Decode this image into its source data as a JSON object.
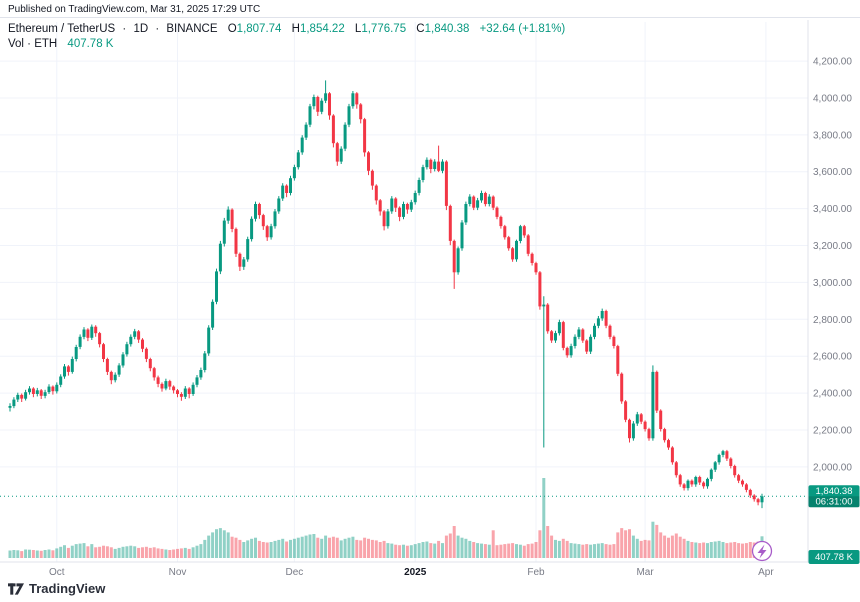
{
  "published": "Published on TradingView.com, Mar 31, 2025 17:29 UTC",
  "header": {
    "symbol": "Ethereum / TetherUS",
    "sep": "·",
    "interval": "1D",
    "exchange": "BINANCE",
    "o_label": "O",
    "o_value": "1,807.74",
    "h_label": "H",
    "h_value": "1,854.22",
    "l_label": "L",
    "l_value": "1,776.75",
    "c_label": "C",
    "c_value": "1,840.38",
    "change": "+32.64 (+1.81%)",
    "vol_label": "Vol · ETH",
    "vol_value": "407.78 K"
  },
  "watermark": {
    "brand": "TradingView"
  },
  "colors": {
    "up": "#089981",
    "down": "#F23645",
    "volume_up": "rgba(8,153,129,0.45)",
    "volume_down": "rgba(242,54,69,0.45)",
    "grid": "#F0F3FA",
    "axis_border": "#E0E3EB",
    "axis_text": "#787B86",
    "text": "#131722",
    "label_bg": "#089981",
    "bolt": "#A85CC9"
  },
  "chart_data": {
    "type": "candlestick",
    "title": "Ethereum / TetherUS · 1D · BINANCE",
    "interval": "1D",
    "grid": true,
    "legend_position": "top-left",
    "ylim": [
      1750,
      4260
    ],
    "columns": [
      "open",
      "high",
      "low",
      "close",
      "volume_k"
    ],
    "last": {
      "price": 1840.38,
      "price_label": "1,840.38",
      "countdown": "06:31:00",
      "volume_label": "407.78 K"
    },
    "y_axis": {
      "side": "right",
      "ticks": [
        {
          "value": 4200,
          "label": "4,200.00"
        },
        {
          "value": 4000,
          "label": "4,000.00"
        },
        {
          "value": 3800,
          "label": "3,800.00"
        },
        {
          "value": 3600,
          "label": "3,600.00"
        },
        {
          "value": 3400,
          "label": "3,400.00"
        },
        {
          "value": 3200,
          "label": "3,200.00"
        },
        {
          "value": 3000,
          "label": "3,000.00"
        },
        {
          "value": 2800,
          "label": "2,800.00"
        },
        {
          "value": 2600,
          "label": "2,600.00"
        },
        {
          "value": 2400,
          "label": "2,400.00"
        },
        {
          "value": 2200,
          "label": "2,200.00"
        },
        {
          "value": 2000,
          "label": "2,000.00"
        }
      ]
    },
    "x_axis": {
      "labels": [
        {
          "index": 12,
          "label": "Oct",
          "bold": false
        },
        {
          "index": 43,
          "label": "Nov",
          "bold": false
        },
        {
          "index": 73,
          "label": "Dec",
          "bold": false
        },
        {
          "index": 104,
          "label": "2025",
          "bold": true
        },
        {
          "index": 135,
          "label": "Feb",
          "bold": false
        },
        {
          "index": 163,
          "label": "Mar",
          "bold": false
        },
        {
          "index": 194,
          "label": "Apr",
          "bold": false
        }
      ]
    },
    "candles": [
      [
        2320,
        2345,
        2300,
        2330,
        140
      ],
      [
        2330,
        2378,
        2318,
        2365,
        150
      ],
      [
        2365,
        2402,
        2352,
        2390,
        145
      ],
      [
        2390,
        2398,
        2352,
        2370,
        130
      ],
      [
        2370,
        2418,
        2360,
        2405,
        160
      ],
      [
        2405,
        2438,
        2392,
        2425,
        155
      ],
      [
        2425,
        2432,
        2378,
        2395,
        150
      ],
      [
        2395,
        2428,
        2382,
        2415,
        140
      ],
      [
        2415,
        2422,
        2368,
        2385,
        135
      ],
      [
        2385,
        2418,
        2372,
        2405,
        150
      ],
      [
        2405,
        2448,
        2395,
        2435,
        160
      ],
      [
        2435,
        2442,
        2392,
        2410,
        145
      ],
      [
        2410,
        2458,
        2398,
        2445,
        180
      ],
      [
        2445,
        2502,
        2432,
        2490,
        210
      ],
      [
        2490,
        2558,
        2478,
        2545,
        240
      ],
      [
        2545,
        2552,
        2495,
        2515,
        190
      ],
      [
        2515,
        2598,
        2505,
        2585,
        230
      ],
      [
        2585,
        2662,
        2572,
        2650,
        260
      ],
      [
        2650,
        2718,
        2638,
        2705,
        270
      ],
      [
        2705,
        2758,
        2692,
        2745,
        280
      ],
      [
        2745,
        2752,
        2682,
        2700,
        220
      ],
      [
        2700,
        2772,
        2688,
        2760,
        260
      ],
      [
        2760,
        2768,
        2705,
        2725,
        200
      ],
      [
        2725,
        2732,
        2648,
        2665,
        210
      ],
      [
        2665,
        2672,
        2568,
        2585,
        230
      ],
      [
        2585,
        2592,
        2498,
        2515,
        220
      ],
      [
        2515,
        2522,
        2448,
        2470,
        200
      ],
      [
        2470,
        2512,
        2458,
        2500,
        170
      ],
      [
        2500,
        2562,
        2488,
        2550,
        190
      ],
      [
        2550,
        2622,
        2538,
        2610,
        210
      ],
      [
        2610,
        2678,
        2598,
        2665,
        220
      ],
      [
        2665,
        2718,
        2652,
        2705,
        230
      ],
      [
        2705,
        2748,
        2692,
        2735,
        220
      ],
      [
        2735,
        2742,
        2672,
        2690,
        190
      ],
      [
        2690,
        2698,
        2622,
        2640,
        200
      ],
      [
        2640,
        2648,
        2568,
        2585,
        210
      ],
      [
        2585,
        2592,
        2518,
        2535,
        190
      ],
      [
        2535,
        2542,
        2468,
        2485,
        200
      ],
      [
        2485,
        2495,
        2432,
        2450,
        180
      ],
      [
        2450,
        2458,
        2408,
        2425,
        170
      ],
      [
        2425,
        2478,
        2415,
        2465,
        160
      ],
      [
        2465,
        2472,
        2418,
        2435,
        150
      ],
      [
        2435,
        2442,
        2398,
        2415,
        160
      ],
      [
        2415,
        2422,
        2378,
        2395,
        170
      ],
      [
        2395,
        2405,
        2358,
        2380,
        180
      ],
      [
        2380,
        2438,
        2368,
        2425,
        190
      ],
      [
        2425,
        2432,
        2372,
        2395,
        170
      ],
      [
        2395,
        2458,
        2385,
        2445,
        200
      ],
      [
        2445,
        2498,
        2432,
        2485,
        230
      ],
      [
        2485,
        2538,
        2472,
        2525,
        260
      ],
      [
        2525,
        2628,
        2512,
        2615,
        340
      ],
      [
        2615,
        2768,
        2602,
        2755,
        420
      ],
      [
        2755,
        2908,
        2742,
        2895,
        480
      ],
      [
        2895,
        3075,
        2882,
        3060,
        540
      ],
      [
        3060,
        3225,
        3045,
        3210,
        560
      ],
      [
        3210,
        3350,
        3195,
        3335,
        520
      ],
      [
        3335,
        3412,
        3318,
        3395,
        480
      ],
      [
        3395,
        3402,
        3272,
        3290,
        400
      ],
      [
        3290,
        3298,
        3138,
        3155,
        380
      ],
      [
        3155,
        3162,
        3062,
        3085,
        340
      ],
      [
        3085,
        3138,
        3068,
        3125,
        300
      ],
      [
        3125,
        3248,
        3112,
        3235,
        330
      ],
      [
        3235,
        3358,
        3222,
        3345,
        360
      ],
      [
        3345,
        3438,
        3330,
        3425,
        380
      ],
      [
        3425,
        3432,
        3345,
        3365,
        320
      ],
      [
        3365,
        3372,
        3285,
        3305,
        300
      ],
      [
        3305,
        3312,
        3225,
        3245,
        290
      ],
      [
        3245,
        3318,
        3232,
        3305,
        300
      ],
      [
        3305,
        3398,
        3292,
        3385,
        320
      ],
      [
        3385,
        3468,
        3372,
        3455,
        340
      ],
      [
        3455,
        3538,
        3442,
        3525,
        360
      ],
      [
        3525,
        3532,
        3462,
        3485,
        310
      ],
      [
        3485,
        3578,
        3472,
        3565,
        340
      ],
      [
        3565,
        3638,
        3552,
        3625,
        360
      ],
      [
        3625,
        3718,
        3612,
        3705,
        380
      ],
      [
        3705,
        3798,
        3692,
        3785,
        400
      ],
      [
        3785,
        3868,
        3772,
        3855,
        420
      ],
      [
        3855,
        3968,
        3842,
        3955,
        440
      ],
      [
        3955,
        4018,
        3938,
        4005,
        450
      ],
      [
        4005,
        4012,
        3902,
        3925,
        380
      ],
      [
        3925,
        3998,
        3912,
        3985,
        360
      ],
      [
        3985,
        4095,
        3972,
        4025,
        420
      ],
      [
        4025,
        4032,
        3882,
        3905,
        380
      ],
      [
        3905,
        3912,
        3732,
        3755,
        400
      ],
      [
        3755,
        3762,
        3632,
        3655,
        380
      ],
      [
        3655,
        3738,
        3642,
        3725,
        330
      ],
      [
        3725,
        3868,
        3712,
        3855,
        360
      ],
      [
        3855,
        3968,
        3842,
        3955,
        380
      ],
      [
        3955,
        4038,
        3942,
        4025,
        400
      ],
      [
        4025,
        4032,
        3942,
        3965,
        340
      ],
      [
        3965,
        3972,
        3862,
        3885,
        330
      ],
      [
        3885,
        3892,
        3682,
        3705,
        380
      ],
      [
        3705,
        3712,
        3582,
        3605,
        360
      ],
      [
        3605,
        3612,
        3502,
        3525,
        340
      ],
      [
        3525,
        3532,
        3422,
        3445,
        330
      ],
      [
        3445,
        3452,
        3362,
        3385,
        300
      ],
      [
        3385,
        3392,
        3282,
        3305,
        320
      ],
      [
        3305,
        3398,
        3292,
        3385,
        280
      ],
      [
        3385,
        3468,
        3372,
        3455,
        270
      ],
      [
        3455,
        3462,
        3382,
        3405,
        250
      ],
      [
        3405,
        3412,
        3332,
        3355,
        240
      ],
      [
        3355,
        3438,
        3342,
        3425,
        250
      ],
      [
        3425,
        3432,
        3372,
        3395,
        230
      ],
      [
        3395,
        3448,
        3382,
        3435,
        240
      ],
      [
        3435,
        3498,
        3422,
        3485,
        260
      ],
      [
        3485,
        3568,
        3472,
        3555,
        280
      ],
      [
        3555,
        3638,
        3542,
        3625,
        300
      ],
      [
        3625,
        3678,
        3612,
        3665,
        310
      ],
      [
        3665,
        3672,
        3592,
        3615,
        280
      ],
      [
        3615,
        3668,
        3602,
        3655,
        270
      ],
      [
        3655,
        3742,
        3598,
        3605,
        320
      ],
      [
        3605,
        3668,
        3592,
        3655,
        280
      ],
      [
        3655,
        3662,
        3392,
        3415,
        420
      ],
      [
        3415,
        3422,
        3202,
        3225,
        460
      ],
      [
        3225,
        3232,
        2965,
        3055,
        600
      ],
      [
        3055,
        3195,
        3042,
        3185,
        420
      ],
      [
        3185,
        3338,
        3172,
        3325,
        380
      ],
      [
        3325,
        3438,
        3312,
        3425,
        360
      ],
      [
        3425,
        3478,
        3412,
        3465,
        320
      ],
      [
        3465,
        3472,
        3392,
        3405,
        300
      ],
      [
        3405,
        3458,
        3392,
        3445,
        280
      ],
      [
        3445,
        3498,
        3432,
        3485,
        270
      ],
      [
        3485,
        3492,
        3412,
        3425,
        260
      ],
      [
        3425,
        3478,
        3412,
        3465,
        250
      ],
      [
        3465,
        3472,
        3392,
        3405,
        520
      ],
      [
        3405,
        3412,
        3342,
        3355,
        240
      ],
      [
        3355,
        3362,
        3292,
        3305,
        250
      ],
      [
        3305,
        3312,
        3232,
        3245,
        260
      ],
      [
        3245,
        3252,
        3172,
        3185,
        270
      ],
      [
        3185,
        3192,
        3112,
        3125,
        280
      ],
      [
        3125,
        3232,
        3112,
        3225,
        260
      ],
      [
        3225,
        3312,
        3212,
        3305,
        250
      ],
      [
        3305,
        3312,
        3242,
        3255,
        230
      ],
      [
        3255,
        3262,
        3142,
        3155,
        260
      ],
      [
        3155,
        3162,
        3092,
        3105,
        270
      ],
      [
        3105,
        3112,
        3042,
        3055,
        300
      ],
      [
        3055,
        3062,
        2852,
        2870,
        520
      ],
      [
        2870,
        2925,
        2105,
        2880,
        1500
      ],
      [
        2880,
        2888,
        2722,
        2735,
        600
      ],
      [
        2735,
        2742,
        2672,
        2685,
        420
      ],
      [
        2685,
        2738,
        2672,
        2725,
        340
      ],
      [
        2725,
        2798,
        2712,
        2785,
        320
      ],
      [
        2785,
        2792,
        2632,
        2645,
        360
      ],
      [
        2645,
        2652,
        2592,
        2605,
        320
      ],
      [
        2605,
        2668,
        2592,
        2655,
        280
      ],
      [
        2655,
        2718,
        2642,
        2705,
        270
      ],
      [
        2705,
        2758,
        2692,
        2745,
        260
      ],
      [
        2745,
        2752,
        2672,
        2685,
        250
      ],
      [
        2685,
        2692,
        2612,
        2625,
        260
      ],
      [
        2625,
        2718,
        2612,
        2705,
        250
      ],
      [
        2705,
        2778,
        2692,
        2765,
        260
      ],
      [
        2765,
        2818,
        2752,
        2805,
        270
      ],
      [
        2805,
        2858,
        2792,
        2845,
        280
      ],
      [
        2845,
        2852,
        2752,
        2765,
        260
      ],
      [
        2765,
        2772,
        2692,
        2705,
        250
      ],
      [
        2705,
        2712,
        2642,
        2655,
        260
      ],
      [
        2655,
        2662,
        2492,
        2505,
        480
      ],
      [
        2505,
        2512,
        2342,
        2355,
        560
      ],
      [
        2355,
        2362,
        2242,
        2255,
        520
      ],
      [
        2255,
        2262,
        2132,
        2155,
        540
      ],
      [
        2155,
        2248,
        2142,
        2235,
        420
      ],
      [
        2235,
        2298,
        2222,
        2285,
        360
      ],
      [
        2285,
        2292,
        2232,
        2245,
        320
      ],
      [
        2245,
        2252,
        2192,
        2205,
        340
      ],
      [
        2205,
        2212,
        2142,
        2155,
        330
      ],
      [
        2155,
        2550,
        2142,
        2515,
        680
      ],
      [
        2515,
        2522,
        2292,
        2305,
        620
      ],
      [
        2305,
        2312,
        2192,
        2205,
        480
      ],
      [
        2205,
        2212,
        2132,
        2145,
        420
      ],
      [
        2145,
        2152,
        2092,
        2105,
        380
      ],
      [
        2105,
        2112,
        2012,
        2025,
        420
      ],
      [
        2025,
        2032,
        1942,
        1955,
        460
      ],
      [
        1955,
        1962,
        1892,
        1905,
        400
      ],
      [
        1905,
        1912,
        1872,
        1885,
        360
      ],
      [
        1885,
        1932,
        1872,
        1925,
        320
      ],
      [
        1925,
        1932,
        1892,
        1905,
        300
      ],
      [
        1905,
        1952,
        1892,
        1945,
        290
      ],
      [
        1945,
        1952,
        1902,
        1915,
        280
      ],
      [
        1915,
        1922,
        1882,
        1895,
        290
      ],
      [
        1895,
        1942,
        1882,
        1935,
        280
      ],
      [
        1935,
        1992,
        1922,
        1985,
        300
      ],
      [
        1985,
        2032,
        1972,
        2025,
        310
      ],
      [
        2025,
        2072,
        2012,
        2065,
        320
      ],
      [
        2065,
        2092,
        2052,
        2085,
        300
      ],
      [
        2085,
        2092,
        2032,
        2045,
        280
      ],
      [
        2045,
        2052,
        1992,
        2005,
        290
      ],
      [
        2005,
        2012,
        1942,
        1955,
        300
      ],
      [
        1955,
        1962,
        1912,
        1925,
        280
      ],
      [
        1925,
        1932,
        1892,
        1905,
        270
      ],
      [
        1905,
        1912,
        1862,
        1875,
        280
      ],
      [
        1875,
        1882,
        1832,
        1845,
        300
      ],
      [
        1845,
        1852,
        1812,
        1825,
        290
      ],
      [
        1825,
        1832,
        1792,
        1808,
        310
      ],
      [
        1807.74,
        1854.22,
        1776.75,
        1840.38,
        407.78
      ]
    ]
  }
}
